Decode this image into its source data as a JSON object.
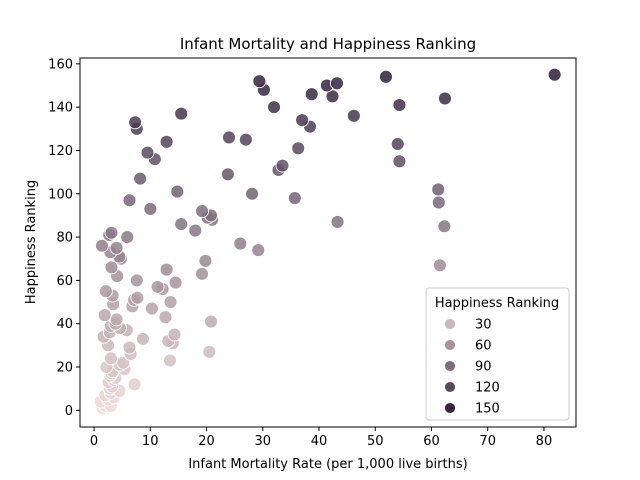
{
  "chart_data": {
    "type": "scatter",
    "title": "Infant Mortality and Happiness Ranking",
    "xlabel": "Infant Mortality Rate (per 1,000 live births)",
    "ylabel": "Happiness Ranking",
    "xlim": [
      -2.5,
      85.7
    ],
    "ylim": [
      -7.7,
      162.7
    ],
    "xticks": [
      0,
      10,
      20,
      30,
      40,
      50,
      60,
      70,
      80
    ],
    "yticks": [
      0,
      20,
      40,
      60,
      80,
      100,
      120,
      140,
      160
    ],
    "grid": false,
    "legend": {
      "title": "Happiness Ranking",
      "placement": "lower-right",
      "entries": [
        {
          "label": "30",
          "value": 30
        },
        {
          "label": "60",
          "value": 60
        },
        {
          "label": "90",
          "value": 90
        },
        {
          "label": "120",
          "value": 120
        },
        {
          "label": "150",
          "value": 150
        }
      ]
    },
    "colormap": {
      "low_color": "#f0dcd9",
      "high_color": "#2e1e3b",
      "low_value": 1,
      "high_value": 155
    },
    "points": [
      {
        "x": 1.5,
        "y": 1
      },
      {
        "x": 2.0,
        "y": 2
      },
      {
        "x": 3.0,
        "y": 2
      },
      {
        "x": 1.2,
        "y": 4
      },
      {
        "x": 2.5,
        "y": 5
      },
      {
        "x": 3.5,
        "y": 6
      },
      {
        "x": 2.0,
        "y": 7
      },
      {
        "x": 3.0,
        "y": 8
      },
      {
        "x": 4.5,
        "y": 9
      },
      {
        "x": 2.8,
        "y": 10
      },
      {
        "x": 3.2,
        "y": 11
      },
      {
        "x": 7.2,
        "y": 12
      },
      {
        "x": 2.6,
        "y": 13
      },
      {
        "x": 3.5,
        "y": 14
      },
      {
        "x": 3.8,
        "y": 15
      },
      {
        "x": 2.9,
        "y": 16
      },
      {
        "x": 3.1,
        "y": 17
      },
      {
        "x": 3.3,
        "y": 18
      },
      {
        "x": 5.4,
        "y": 19
      },
      {
        "x": 2.2,
        "y": 20
      },
      {
        "x": 4.6,
        "y": 21
      },
      {
        "x": 5.2,
        "y": 22
      },
      {
        "x": 13.5,
        "y": 23
      },
      {
        "x": 3.0,
        "y": 24
      },
      {
        "x": 6.5,
        "y": 26
      },
      {
        "x": 20.5,
        "y": 27
      },
      {
        "x": 6.3,
        "y": 29
      },
      {
        "x": 2.5,
        "y": 30
      },
      {
        "x": 14.0,
        "y": 31
      },
      {
        "x": 13.2,
        "y": 32
      },
      {
        "x": 8.7,
        "y": 33
      },
      {
        "x": 1.7,
        "y": 34
      },
      {
        "x": 14.3,
        "y": 35
      },
      {
        "x": 2.8,
        "y": 36
      },
      {
        "x": 5.8,
        "y": 37
      },
      {
        "x": 4.6,
        "y": 38
      },
      {
        "x": 3.0,
        "y": 39
      },
      {
        "x": 3.8,
        "y": 40
      },
      {
        "x": 20.8,
        "y": 41
      },
      {
        "x": 4.0,
        "y": 42
      },
      {
        "x": 12.7,
        "y": 43
      },
      {
        "x": 1.9,
        "y": 44
      },
      {
        "x": 10.3,
        "y": 47
      },
      {
        "x": 6.8,
        "y": 48
      },
      {
        "x": 3.4,
        "y": 49
      },
      {
        "x": 13.6,
        "y": 50
      },
      {
        "x": 7.1,
        "y": 51
      },
      {
        "x": 7.7,
        "y": 52
      },
      {
        "x": 3.3,
        "y": 53
      },
      {
        "x": 2.1,
        "y": 55
      },
      {
        "x": 12.2,
        "y": 56
      },
      {
        "x": 11.3,
        "y": 57
      },
      {
        "x": 14.5,
        "y": 59
      },
      {
        "x": 7.6,
        "y": 60
      },
      {
        "x": 4.1,
        "y": 62
      },
      {
        "x": 19.2,
        "y": 63
      },
      {
        "x": 12.9,
        "y": 65
      },
      {
        "x": 3.1,
        "y": 66
      },
      {
        "x": 61.5,
        "y": 67
      },
      {
        "x": 19.8,
        "y": 69
      },
      {
        "x": 4.8,
        "y": 70
      },
      {
        "x": 4.5,
        "y": 71
      },
      {
        "x": 2.9,
        "y": 73
      },
      {
        "x": 29.2,
        "y": 74
      },
      {
        "x": 4.0,
        "y": 75
      },
      {
        "x": 1.4,
        "y": 76
      },
      {
        "x": 26.0,
        "y": 77
      },
      {
        "x": 5.9,
        "y": 80
      },
      {
        "x": 2.7,
        "y": 81
      },
      {
        "x": 3.1,
        "y": 82
      },
      {
        "x": 18.0,
        "y": 83
      },
      {
        "x": 62.3,
        "y": 85
      },
      {
        "x": 15.5,
        "y": 86
      },
      {
        "x": 43.3,
        "y": 87
      },
      {
        "x": 21.0,
        "y": 88
      },
      {
        "x": 20.2,
        "y": 89
      },
      {
        "x": 20.8,
        "y": 90
      },
      {
        "x": 19.2,
        "y": 92
      },
      {
        "x": 10.0,
        "y": 93
      },
      {
        "x": 61.3,
        "y": 96
      },
      {
        "x": 6.3,
        "y": 97
      },
      {
        "x": 35.7,
        "y": 98
      },
      {
        "x": 28.1,
        "y": 100
      },
      {
        "x": 14.8,
        "y": 101
      },
      {
        "x": 61.2,
        "y": 102
      },
      {
        "x": 8.2,
        "y": 107
      },
      {
        "x": 23.8,
        "y": 109
      },
      {
        "x": 32.8,
        "y": 111
      },
      {
        "x": 33.5,
        "y": 113
      },
      {
        "x": 54.3,
        "y": 115
      },
      {
        "x": 10.8,
        "y": 116
      },
      {
        "x": 9.5,
        "y": 119
      },
      {
        "x": 36.3,
        "y": 121
      },
      {
        "x": 54.0,
        "y": 123
      },
      {
        "x": 12.9,
        "y": 124
      },
      {
        "x": 27.0,
        "y": 125
      },
      {
        "x": 24.0,
        "y": 126
      },
      {
        "x": 7.6,
        "y": 130
      },
      {
        "x": 38.4,
        "y": 131
      },
      {
        "x": 7.3,
        "y": 133
      },
      {
        "x": 37.0,
        "y": 134
      },
      {
        "x": 46.2,
        "y": 136
      },
      {
        "x": 15.5,
        "y": 137
      },
      {
        "x": 32.0,
        "y": 140
      },
      {
        "x": 54.3,
        "y": 141
      },
      {
        "x": 62.4,
        "y": 144
      },
      {
        "x": 42.4,
        "y": 145
      },
      {
        "x": 38.7,
        "y": 146
      },
      {
        "x": 30.2,
        "y": 148
      },
      {
        "x": 41.4,
        "y": 150
      },
      {
        "x": 43.2,
        "y": 151
      },
      {
        "x": 29.4,
        "y": 152
      },
      {
        "x": 51.9,
        "y": 154
      },
      {
        "x": 81.9,
        "y": 155
      }
    ]
  }
}
